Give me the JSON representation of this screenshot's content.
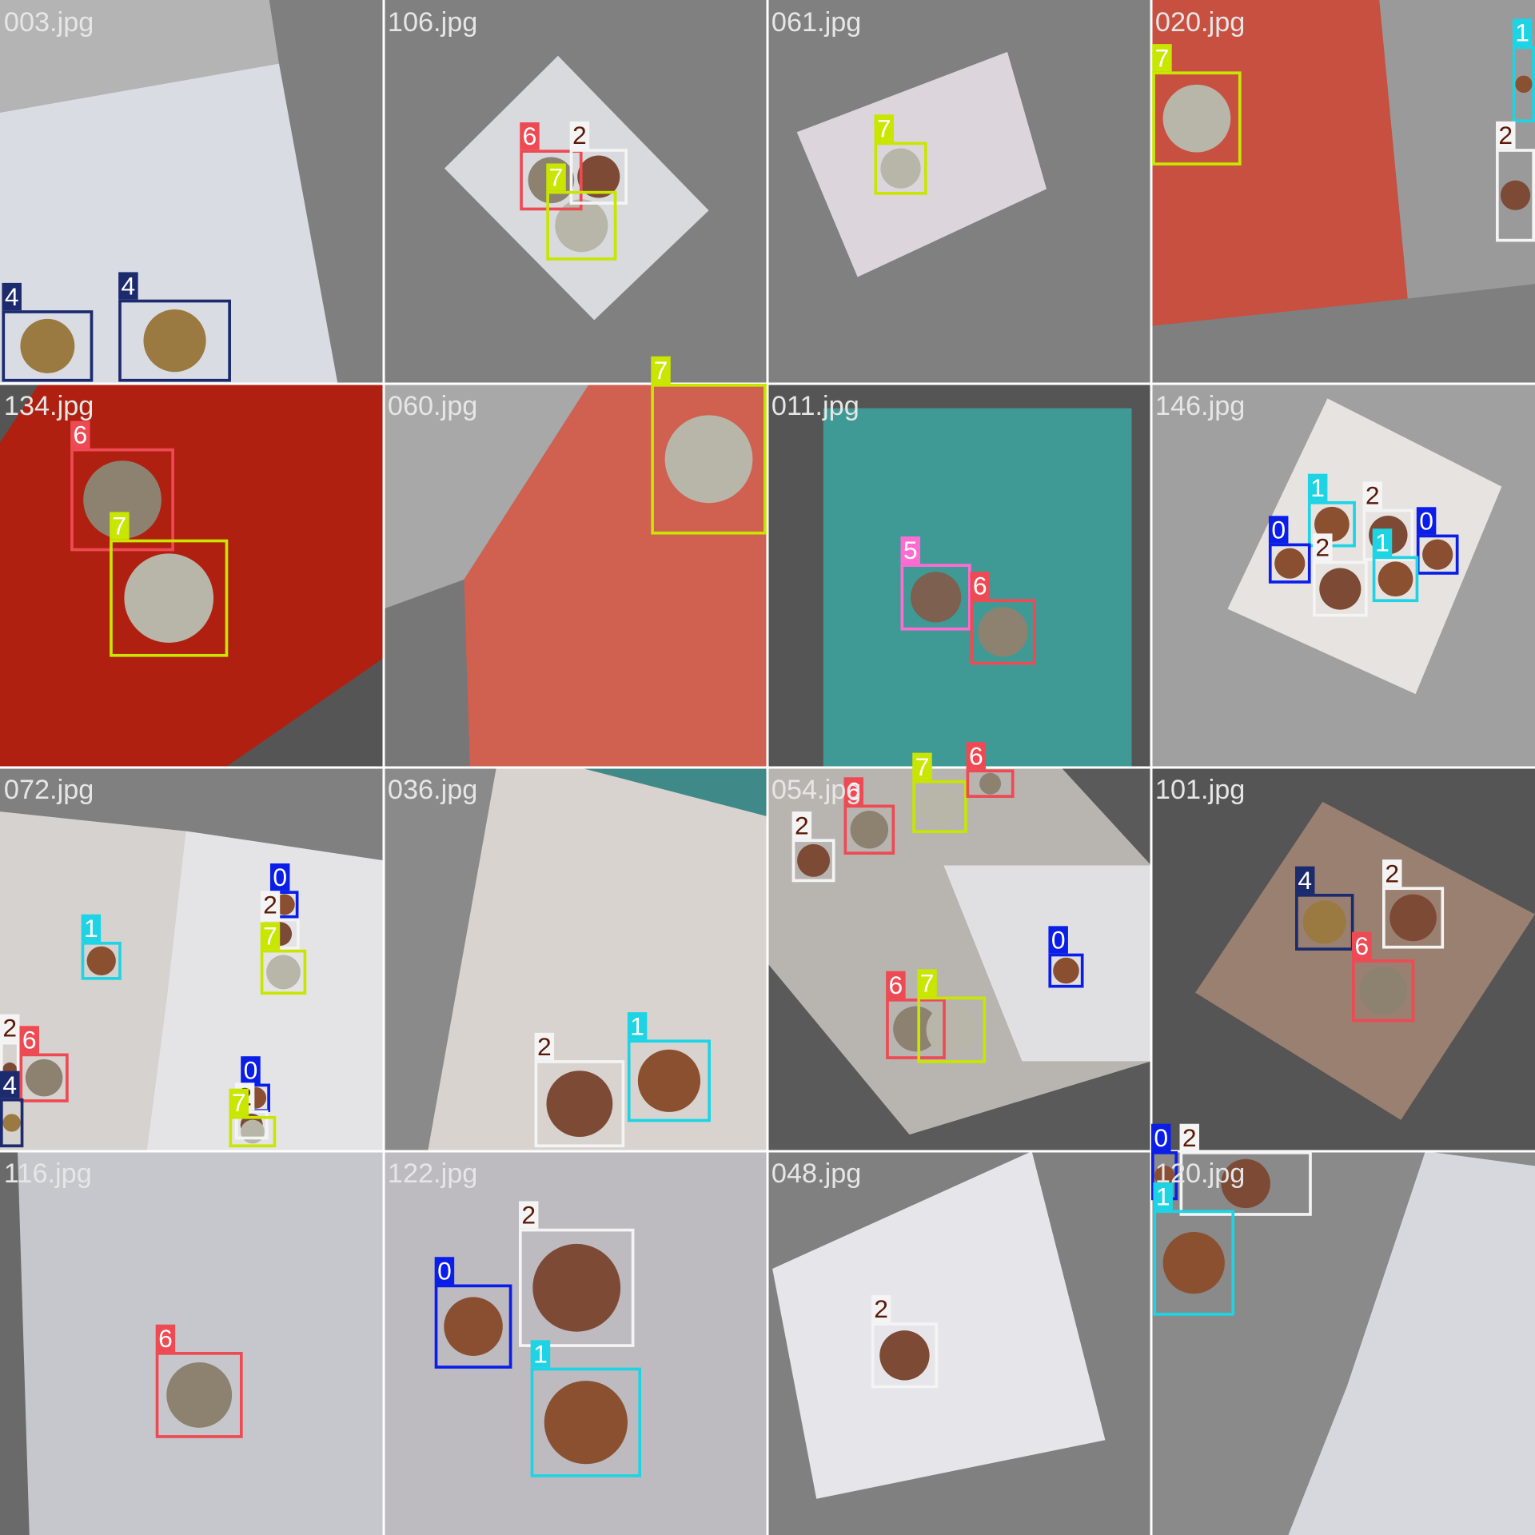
{
  "tiles": [
    {
      "file": "003.jpg",
      "boxes": [
        "4",
        "4"
      ]
    },
    {
      "file": "106.jpg",
      "boxes": [
        "6",
        "2",
        "7"
      ]
    },
    {
      "file": "061.jpg",
      "boxes": [
        "7"
      ]
    },
    {
      "file": "020.jpg",
      "boxes": [
        "7",
        "1",
        "2"
      ]
    },
    {
      "file": "134.jpg",
      "boxes": [
        "6",
        "7"
      ]
    },
    {
      "file": "060.jpg",
      "boxes": [
        "7"
      ]
    },
    {
      "file": "011.jpg",
      "boxes": [
        "5",
        "6"
      ]
    },
    {
      "file": "146.jpg",
      "boxes": [
        "1",
        "2",
        "0",
        "2",
        "0",
        "1"
      ]
    },
    {
      "file": "072.jpg",
      "boxes": [
        "1",
        "0",
        "2",
        "7",
        "2",
        "6",
        "4",
        "0",
        "2",
        "7"
      ]
    },
    {
      "file": "036.jpg",
      "boxes": [
        "2",
        "1"
      ]
    },
    {
      "file": "054.jpg",
      "boxes": [
        "7",
        "6",
        "6",
        "2",
        "0",
        "6",
        "7"
      ]
    },
    {
      "file": "101.jpg",
      "boxes": [
        "4",
        "2",
        "6"
      ]
    },
    {
      "file": "116.jpg",
      "boxes": [
        "6"
      ]
    },
    {
      "file": "122.jpg",
      "boxes": [
        "0",
        "2",
        "1"
      ]
    },
    {
      "file": "048.jpg",
      "boxes": [
        "2"
      ]
    },
    {
      "file": "120.jpg",
      "boxes": [
        "0",
        "2",
        "1"
      ]
    }
  ]
}
